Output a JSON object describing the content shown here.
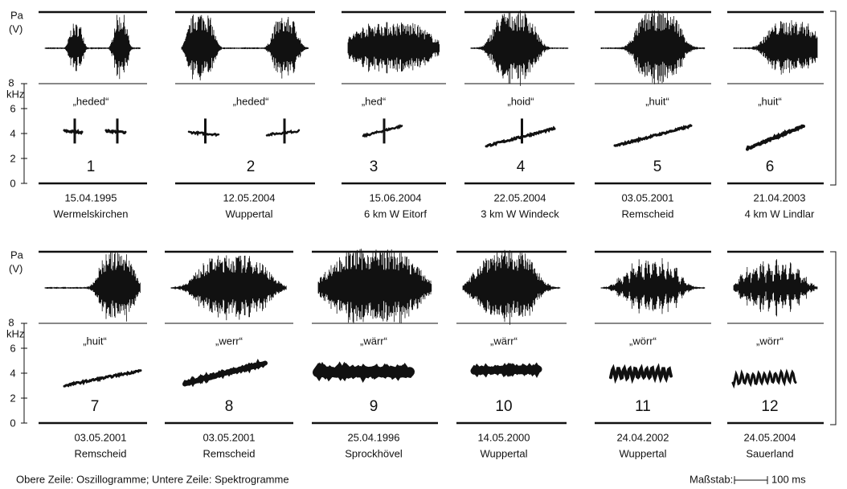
{
  "axis": {
    "upper_unit": [
      "Pa",
      "(V)"
    ],
    "lower_unit": "kHz",
    "lower_ticks": [
      "8",
      "6",
      "4",
      "2",
      "0"
    ]
  },
  "rows": [
    {
      "panels": [
        {
          "syllable": "„heded“",
          "number": "1",
          "date": "15.04.1995",
          "place": "Wermelskirchen"
        },
        {
          "syllable": "„heded“",
          "number": "2",
          "date": "12.05.2004",
          "place": "Wuppertal"
        },
        {
          "syllable": "„hed“",
          "number": "3",
          "date": "15.06.2004",
          "place": "6 km W Eitorf"
        },
        {
          "syllable": "„hoid“",
          "number": "4",
          "date": "22.05.2004",
          "place": "3 km W Windeck"
        },
        {
          "syllable": "„huit“",
          "number": "5",
          "date": "03.05.2001",
          "place": "Remscheid"
        },
        {
          "syllable": "„huit“",
          "number": "6",
          "date": "21.04.2003",
          "place": "4 km W Lindlar"
        }
      ]
    },
    {
      "panels": [
        {
          "syllable": "„huit“",
          "number": "7",
          "date": "03.05.2001",
          "place": "Remscheid"
        },
        {
          "syllable": "„werr“",
          "number": "8",
          "date": "03.05.2001",
          "place": "Remscheid"
        },
        {
          "syllable": "„wärr“",
          "number": "9",
          "date": "25.04.1996",
          "place": "Sprockhövel"
        },
        {
          "syllable": "„wärr“",
          "number": "10",
          "date": "14.05.2000",
          "place": "Wuppertal"
        },
        {
          "syllable": "„wörr“",
          "number": "11",
          "date": "24.04.2002",
          "place": "Wuppertal"
        },
        {
          "syllable": "„wörr“",
          "number": "12",
          "date": "24.05.2004",
          "place": "Sauerland"
        }
      ]
    }
  ],
  "caption": "Obere Zeile: Oszillogramme;  Untere Zeile: Spektrogramme",
  "scale_label": "Maßstab:",
  "scale_value": "100 ms"
}
